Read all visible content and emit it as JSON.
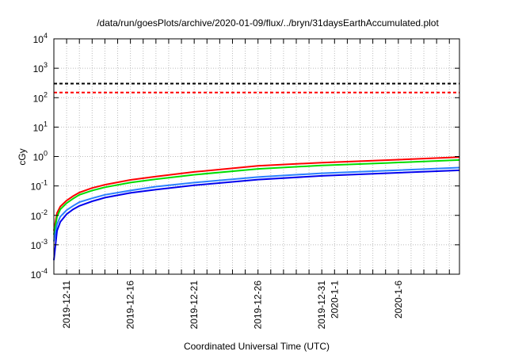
{
  "chart_data": {
    "type": "line",
    "title": "/data/run/goesPlots/archive/2020-01-09/flux/../bryn/31daysEarthAccumulated.plot",
    "xlabel": "Coordinated Universal Time (UTC)",
    "ylabel": "cGy",
    "yscale": "log",
    "ylim": [
      0.0001,
      10000
    ],
    "xlim": [
      "2019-12-10",
      "2020-01-10T19:00"
    ],
    "grid": true,
    "y_ticks": [
      {
        "value": 0.0001,
        "base": "10",
        "exp": "-4"
      },
      {
        "value": 0.001,
        "base": "10",
        "exp": "-3"
      },
      {
        "value": 0.01,
        "base": "10",
        "exp": "-2"
      },
      {
        "value": 0.1,
        "base": "10",
        "exp": "-1"
      },
      {
        "value": 1,
        "base": "10",
        "exp": "0"
      },
      {
        "value": 10,
        "base": "10",
        "exp": "1"
      },
      {
        "value": 100,
        "base": "10",
        "exp": "2"
      },
      {
        "value": 1000,
        "base": "10",
        "exp": "3"
      },
      {
        "value": 10000,
        "base": "10",
        "exp": "4"
      }
    ],
    "x_ticks": [
      {
        "date": "2019-12-11",
        "label": "2019-12-11"
      },
      {
        "date": "2019-12-16",
        "label": "2019-12-16"
      },
      {
        "date": "2019-12-21",
        "label": "2019-12-21"
      },
      {
        "date": "2019-12-26",
        "label": "2019-12-26"
      },
      {
        "date": "2019-12-31",
        "label": "2019-12-31"
      },
      {
        "date": "2020-01-01",
        "label": "2020-1-1"
      },
      {
        "date": "2020-01-06",
        "label": "2020-1-6"
      }
    ],
    "thresholds": [
      {
        "value": 300,
        "color": "#000000"
      },
      {
        "value": 150,
        "color": "#ff0000"
      }
    ],
    "x": [
      "2019-12-10T00:00",
      "2019-12-10T06:00",
      "2019-12-10T12:00",
      "2019-12-11T00:00",
      "2019-12-11T12:00",
      "2019-12-12T00:00",
      "2019-12-13T00:00",
      "2019-12-14T00:00",
      "2019-12-16T00:00",
      "2019-12-18T00:00",
      "2019-12-21T00:00",
      "2019-12-26T00:00",
      "2019-12-31T00:00",
      "2020-01-05T00:00",
      "2020-01-10T19:00"
    ],
    "series": [
      {
        "name": "red",
        "color": "#ff0000",
        "values": [
          0.003,
          0.012,
          0.02,
          0.032,
          0.045,
          0.06,
          0.085,
          0.11,
          0.16,
          0.21,
          0.3,
          0.48,
          0.62,
          0.75,
          0.95
        ]
      },
      {
        "name": "green",
        "color": "#00dd00",
        "values": [
          0.0022,
          0.009,
          0.016,
          0.026,
          0.037,
          0.05,
          0.07,
          0.09,
          0.13,
          0.17,
          0.24,
          0.38,
          0.5,
          0.6,
          0.76
        ]
      },
      {
        "name": "light-blue",
        "color": "#2a80ff",
        "values": [
          0.0013,
          0.005,
          0.009,
          0.015,
          0.021,
          0.028,
          0.038,
          0.05,
          0.07,
          0.095,
          0.13,
          0.2,
          0.27,
          0.33,
          0.42
        ]
      },
      {
        "name": "blue",
        "color": "#0000ee",
        "values": [
          0.0003,
          0.003,
          0.006,
          0.011,
          0.016,
          0.021,
          0.03,
          0.04,
          0.058,
          0.075,
          0.105,
          0.165,
          0.22,
          0.27,
          0.34
        ]
      }
    ]
  }
}
